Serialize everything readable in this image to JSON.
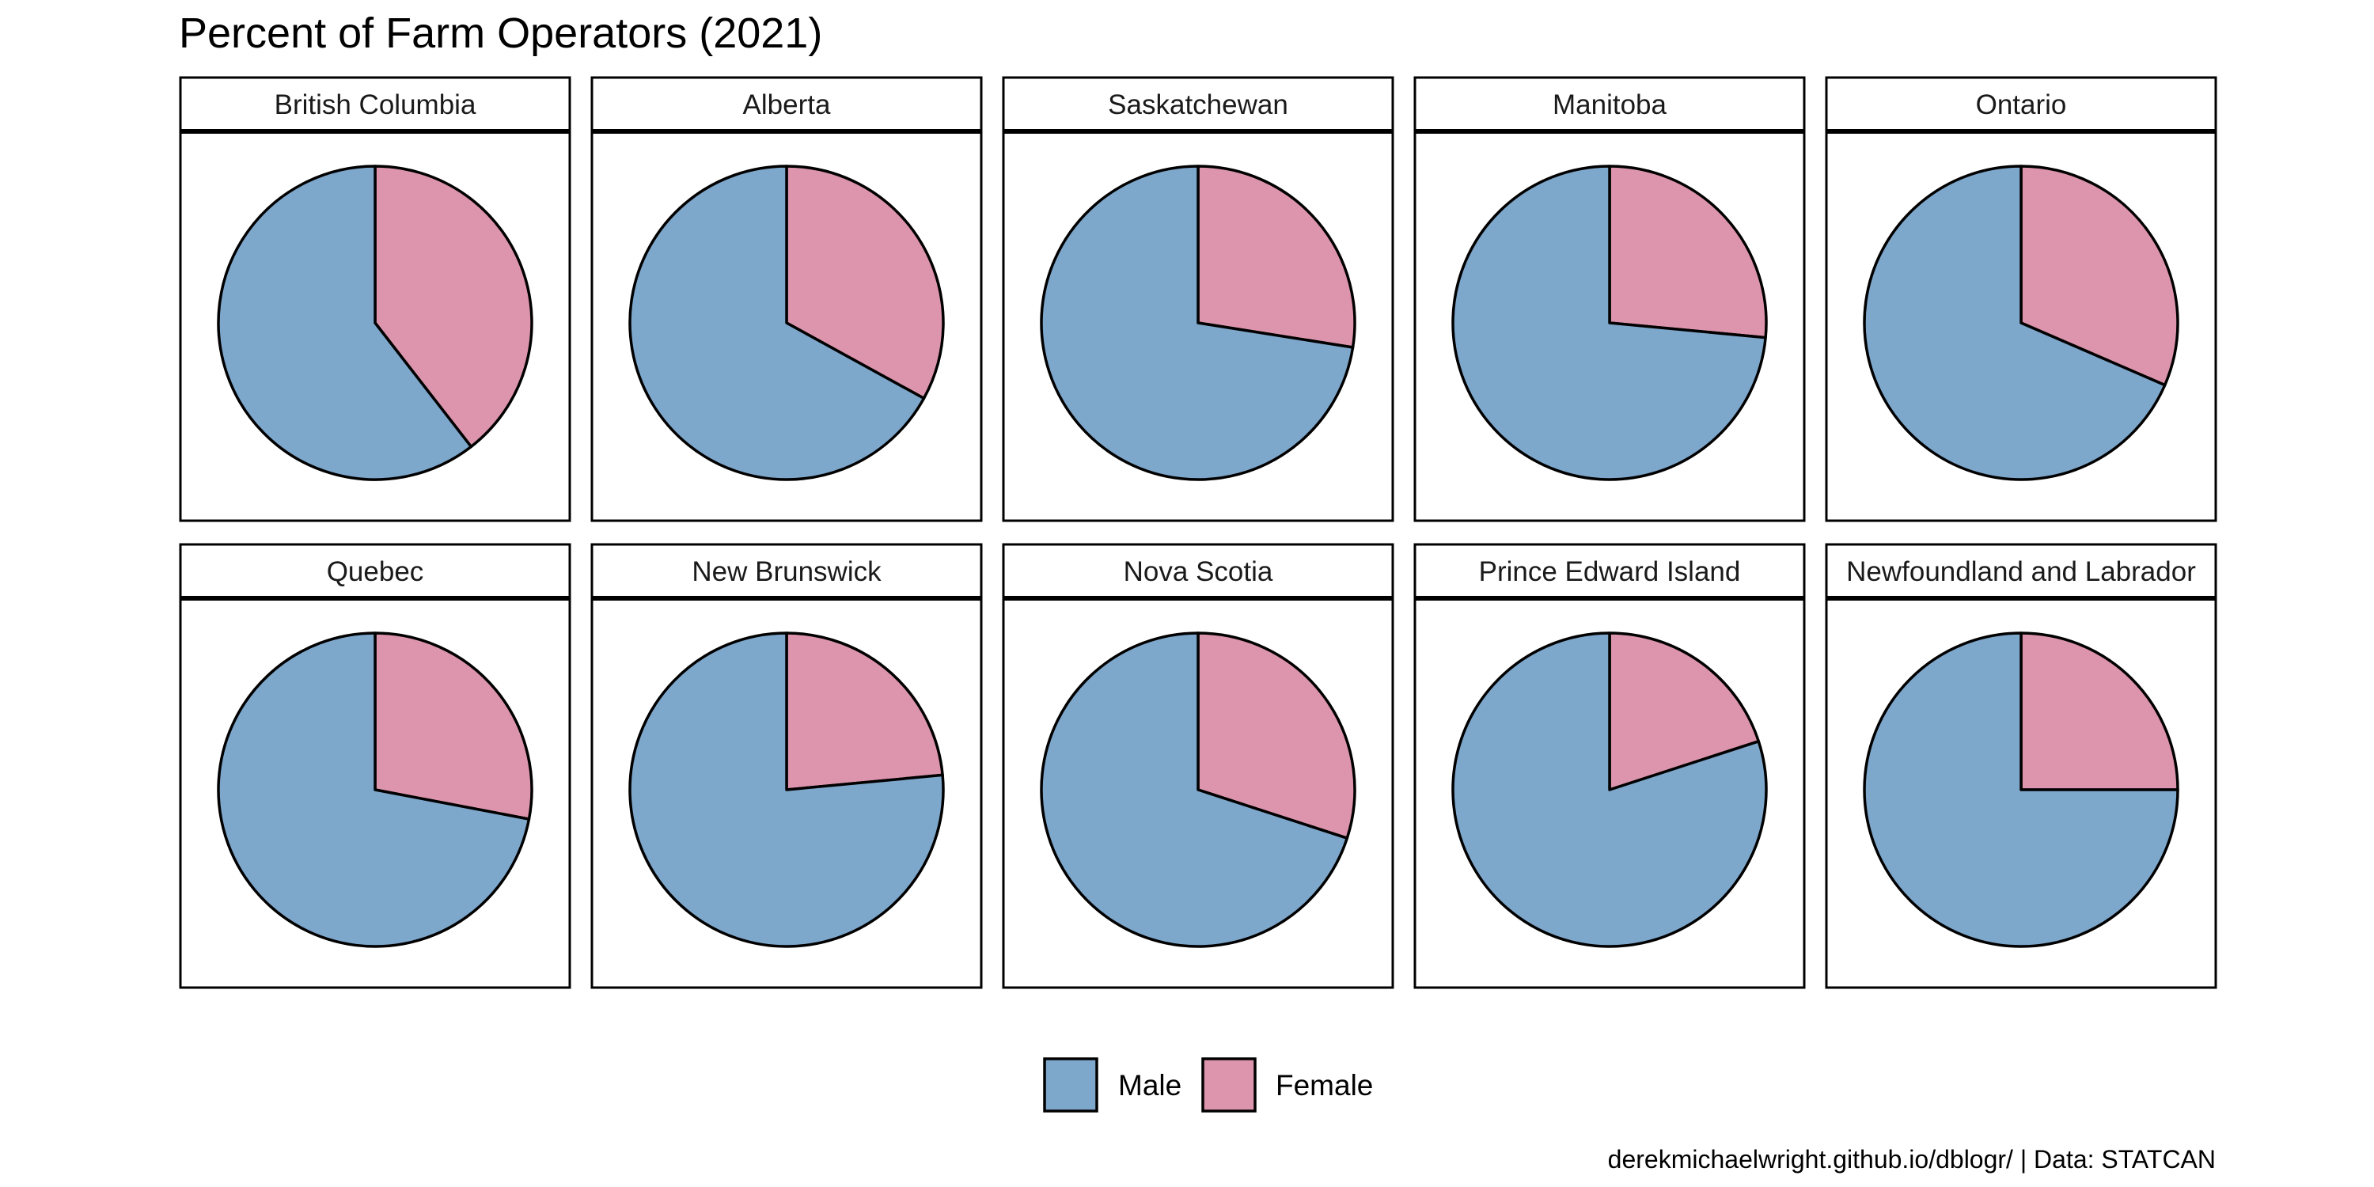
{
  "chart_data": {
    "type": "pie",
    "title": "Percent of Farm Operators (2021)",
    "caption": "derekmichaelwright.github.io/dblogr/ | Data: STATCAN",
    "legend_position": "bottom",
    "series": [
      {
        "name": "Male",
        "color": "#7EA7CC"
      },
      {
        "name": "Female",
        "color": "#DC95AC"
      }
    ],
    "panels": [
      {
        "name": "British Columbia",
        "female": 39.5,
        "male": 60.5
      },
      {
        "name": "Alberta",
        "female": 33.0,
        "male": 67.0
      },
      {
        "name": "Saskatchewan",
        "female": 27.5,
        "male": 72.5
      },
      {
        "name": "Manitoba",
        "female": 26.5,
        "male": 73.5
      },
      {
        "name": "Ontario",
        "female": 31.5,
        "male": 68.5
      },
      {
        "name": "Quebec",
        "female": 28.0,
        "male": 72.0
      },
      {
        "name": "New Brunswick",
        "female": 23.5,
        "male": 76.5
      },
      {
        "name": "Nova Scotia",
        "female": 30.0,
        "male": 70.0
      },
      {
        "name": "Prince Edward Island",
        "female": 20.0,
        "male": 80.0
      },
      {
        "name": "Newfoundland and Labrador",
        "female": 25.0,
        "male": 75.0
      }
    ]
  }
}
